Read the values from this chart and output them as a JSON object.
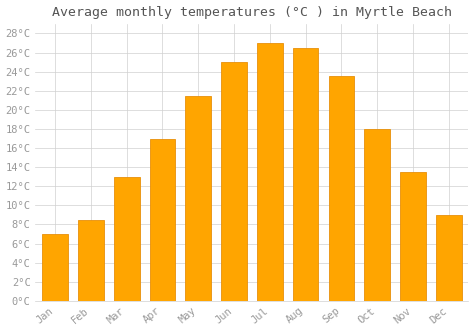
{
  "title": "Average monthly temperatures (°C ) in Myrtle Beach",
  "months": [
    "Jan",
    "Feb",
    "Mar",
    "Apr",
    "May",
    "Jun",
    "Jul",
    "Aug",
    "Sep",
    "Oct",
    "Nov",
    "Dec"
  ],
  "values": [
    7,
    8.5,
    13,
    17,
    21.5,
    25,
    27,
    26.5,
    23.5,
    18,
    13.5,
    9
  ],
  "bar_color": "#FFA500",
  "bar_edge_color": "#E8900A",
  "background_color": "#ffffff",
  "grid_color": "#d0d0d0",
  "ylim": [
    0,
    29
  ],
  "yticks": [
    0,
    2,
    4,
    6,
    8,
    10,
    12,
    14,
    16,
    18,
    20,
    22,
    24,
    26,
    28
  ],
  "title_fontsize": 9.5,
  "tick_fontsize": 7.5,
  "tick_color": "#999999",
  "title_color": "#555555"
}
